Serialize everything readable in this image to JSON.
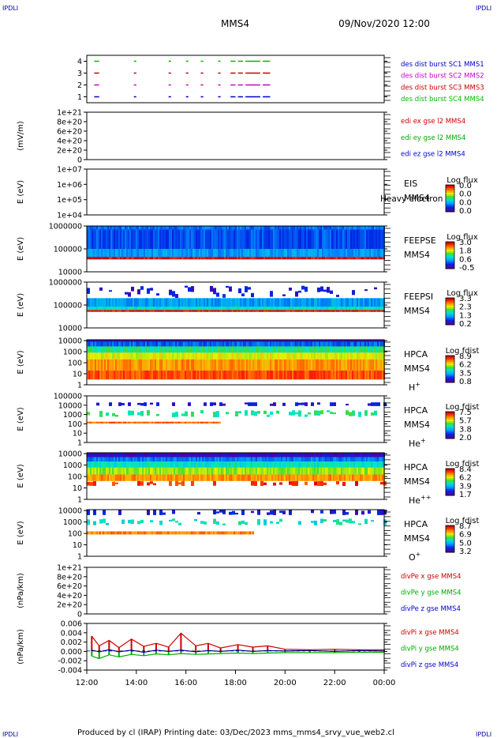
{
  "header": {
    "corner_tl": "IPDLI",
    "corner_tr": "IPDLI",
    "corner_bl": "IPDLI",
    "corner_br": "IPDLI",
    "spacecraft": "MMS4",
    "datetime": "09/Nov/2020 12:00"
  },
  "footer": {
    "text": "Produced by cl (IRAP)   Printing date: 03/Dec/2023   mms_mms4_srvy_vue_web2.cl"
  },
  "time_axis": {
    "ticks": [
      "12:00",
      "14:00",
      "16:00",
      "18:00",
      "20:00",
      "22:00",
      "00:00"
    ],
    "range_hours": [
      0,
      12
    ]
  },
  "chart_data": [
    {
      "id": "burst",
      "type": "scatter",
      "yticks": [
        "1",
        "2",
        "3",
        "4"
      ],
      "ylim": [
        0.5,
        4.5
      ],
      "legend": [
        {
          "label": "des dist burst SC1 MMS1",
          "color": "#0000cc"
        },
        {
          "label": "des dist burst SC2 MMS2",
          "color": "#cc00cc"
        },
        {
          "label": "des dist burst SC3 MMS3",
          "color": "#cc0000"
        },
        {
          "label": "des dist burst SC4 MMS4",
          "color": "#00bb00"
        }
      ],
      "series": [
        {
          "level": 4,
          "color": "#00bb00",
          "intervals": [
            [
              0.3,
              0.5
            ],
            [
              1.9,
              2.0
            ],
            [
              3.3,
              3.4
            ],
            [
              4.0,
              4.1
            ],
            [
              4.6,
              4.7
            ],
            [
              5.3,
              5.4
            ],
            [
              5.8,
              6.0
            ],
            [
              6.1,
              6.3
            ],
            [
              6.4,
              7.0
            ],
            [
              7.1,
              7.4
            ]
          ]
        },
        {
          "level": 3,
          "color": "#cc0000",
          "intervals": [
            [
              0.3,
              0.5
            ],
            [
              1.9,
              2.0
            ],
            [
              3.3,
              3.4
            ],
            [
              4.0,
              4.1
            ],
            [
              4.6,
              4.7
            ],
            [
              5.3,
              5.4
            ],
            [
              5.8,
              6.0
            ],
            [
              6.1,
              6.3
            ],
            [
              6.4,
              7.0
            ],
            [
              7.1,
              7.4
            ]
          ]
        },
        {
          "level": 2,
          "color": "#cc00cc",
          "intervals": [
            [
              0.3,
              0.5
            ],
            [
              1.9,
              2.0
            ],
            [
              3.3,
              3.4
            ],
            [
              4.0,
              4.1
            ],
            [
              4.6,
              4.7
            ],
            [
              5.3,
              5.4
            ],
            [
              5.8,
              6.0
            ],
            [
              6.1,
              6.3
            ],
            [
              6.4,
              7.0
            ],
            [
              7.1,
              7.4
            ]
          ]
        },
        {
          "level": 1,
          "color": "#0000cc",
          "intervals": [
            [
              0.3,
              0.5
            ],
            [
              1.9,
              2.0
            ],
            [
              3.3,
              3.4
            ],
            [
              4.0,
              4.1
            ],
            [
              4.6,
              4.7
            ],
            [
              5.3,
              5.4
            ],
            [
              5.8,
              6.0
            ],
            [
              6.1,
              6.3
            ],
            [
              6.4,
              7.0
            ],
            [
              7.1,
              7.4
            ]
          ]
        }
      ]
    },
    {
      "id": "edi",
      "type": "line",
      "ylabel": "(mV/m)",
      "yticks": [
        "0",
        "2e+20",
        "4e+20",
        "6e+20",
        "8e+20",
        "1e+21"
      ],
      "ylim": [
        0,
        1e+21
      ],
      "legend": [
        {
          "label": "edi ex gse l2 MMS4",
          "color": "#cc0000"
        },
        {
          "label": "edi ey gse l2 MMS4",
          "color": "#00aa00"
        },
        {
          "label": "edi ez gse l2 MMS4",
          "color": "#0000cc"
        }
      ],
      "series": []
    },
    {
      "id": "eis",
      "type": "heatmap",
      "ylabel": "E (eV)",
      "yticks": [
        "1e+04",
        "1e+05",
        "1e+06",
        "1e+07"
      ],
      "ylim": [
        10000.0,
        10000000.0
      ],
      "label_lines": [
        "EIS",
        "MMS4"
      ],
      "overlay_text": "Heavy electron to",
      "colorbar": {
        "title": "Log flux",
        "ticks": [
          "0.0",
          "0.0",
          "0.0",
          "0.0"
        ]
      },
      "data": "empty"
    },
    {
      "id": "feepse",
      "type": "heatmap",
      "ylabel": "E (eV)",
      "yticks": [
        "10000",
        "100000",
        "1000000"
      ],
      "ylim": [
        10000,
        1000000
      ],
      "label_lines": [
        "FEEPSE",
        "MMS4"
      ],
      "colorbar": {
        "title": "Log flux",
        "ticks": [
          "3.0",
          "1.8",
          "0.6",
          "-0.5"
        ]
      },
      "bands": [
        {
          "from": 700000,
          "to": 1000000,
          "level": 0.24
        },
        {
          "from": 100000,
          "to": 700000,
          "level": 0.2
        },
        {
          "from": 45000,
          "to": 100000,
          "level": 0.3
        },
        {
          "from": 35000,
          "to": 45000,
          "level": 0.98
        }
      ]
    },
    {
      "id": "feepsi",
      "type": "heatmap",
      "ylabel": "E (eV)",
      "yticks": [
        "10000",
        "100000",
        "1000000"
      ],
      "ylim": [
        10000,
        1000000
      ],
      "label_lines": [
        "FEEPSI",
        "MMS4"
      ],
      "colorbar": {
        "title": "Log flux",
        "ticks": [
          "3.3",
          "2.3",
          "1.3",
          "0.2"
        ]
      },
      "bands": [
        {
          "from": 200000,
          "to": 700000,
          "level": 0.1,
          "sparse": true
        },
        {
          "from": 85000,
          "to": 200000,
          "level": 0.3
        },
        {
          "from": 60000,
          "to": 85000,
          "level": 0.45
        },
        {
          "from": 50000,
          "to": 60000,
          "level": 0.98
        }
      ]
    },
    {
      "id": "hpca_h",
      "type": "heatmap",
      "ylabel": "E (eV)",
      "yticks": [
        "1",
        "10",
        "100",
        "1000",
        "10000"
      ],
      "ylim": [
        1,
        12000
      ],
      "label_lines": [
        "HPCA",
        "MMS4",
        "H+"
      ],
      "colorbar": {
        "title": "Log fdist",
        "ticks": [
          "8.9",
          "6.2",
          "3.5",
          "0.8"
        ]
      },
      "bands": [
        {
          "from": 8000,
          "to": 12000,
          "level": 0.05
        },
        {
          "from": 3000,
          "to": 8000,
          "level": 0.22
        },
        {
          "from": 800,
          "to": 3000,
          "level": 0.5
        },
        {
          "from": 200,
          "to": 800,
          "level": 0.68
        },
        {
          "from": 20,
          "to": 200,
          "level": 0.8
        },
        {
          "from": 3,
          "to": 20,
          "level": 0.88
        }
      ]
    },
    {
      "id": "hpca_he1",
      "type": "heatmap",
      "ylabel": "E (eV)",
      "yticks": [
        "1",
        "10",
        "100",
        "1000",
        "10000",
        "100000"
      ],
      "ylim": [
        1,
        100000
      ],
      "label_lines": [
        "HPCA",
        "MMS4",
        "He+"
      ],
      "colorbar": {
        "title": "Log fdist",
        "ticks": [
          "7.5",
          "5.7",
          "3.8",
          "2.0"
        ]
      },
      "bands": [
        {
          "from": 8000,
          "to": 20000,
          "level": 0.1,
          "sparse": true
        },
        {
          "from": 500,
          "to": 3000,
          "level": 0.5,
          "sparse": true
        },
        {
          "from": 110,
          "to": 170,
          "level": 0.85,
          "until_hours": 5.4
        }
      ]
    },
    {
      "id": "hpca_he2",
      "type": "heatmap",
      "ylabel": "E (eV)",
      "yticks": [
        "1",
        "10",
        "100",
        "1000",
        "10000"
      ],
      "ylim": [
        1,
        12000
      ],
      "label_lines": [
        "HPCA",
        "MMS4",
        "He++"
      ],
      "colorbar": {
        "title": "Log fdist",
        "ticks": [
          "8.4",
          "6.2",
          "3.9",
          "1.7"
        ]
      },
      "bands": [
        {
          "from": 5000,
          "to": 12000,
          "level": 0.05
        },
        {
          "from": 2000,
          "to": 5000,
          "level": 0.25
        },
        {
          "from": 600,
          "to": 2000,
          "level": 0.45
        },
        {
          "from": 150,
          "to": 600,
          "level": 0.62
        },
        {
          "from": 40,
          "to": 150,
          "level": 0.8
        },
        {
          "from": 15,
          "to": 40,
          "level": 0.92,
          "sparse": true
        }
      ]
    },
    {
      "id": "hpca_o",
      "type": "heatmap",
      "ylabel": "E (eV)",
      "yticks": [
        "1",
        "10",
        "100",
        "1000",
        "10000"
      ],
      "ylim": [
        1,
        12000
      ],
      "label_lines": [
        "HPCA",
        "MMS4",
        "O+"
      ],
      "colorbar": {
        "title": "Log fdist",
        "ticks": [
          "8.7",
          "6.9",
          "5.0",
          "3.2"
        ]
      },
      "bands": [
        {
          "from": 4000,
          "to": 12000,
          "level": 0.1,
          "sparse": true
        },
        {
          "from": 500,
          "to": 2000,
          "level": 0.45,
          "sparse": true
        },
        {
          "from": 80,
          "to": 150,
          "level": 0.82,
          "until_hours": 6.7
        }
      ]
    },
    {
      "id": "dive",
      "type": "line",
      "ylabel": "(nPa/km)",
      "yticks": [
        "0",
        "2e+20",
        "4e+20",
        "6e+20",
        "8e+20",
        "1e+21"
      ],
      "ylim": [
        0,
        1e+21
      ],
      "legend": [
        {
          "label": "divPe x gse MMS4",
          "color": "#cc0000"
        },
        {
          "label": "divPe y gse MMS4",
          "color": "#00aa00"
        },
        {
          "label": "divPe z gse MMS4",
          "color": "#0000cc"
        }
      ],
      "series": []
    },
    {
      "id": "divi",
      "type": "line",
      "ylabel": "(nPa/km)",
      "yticks": [
        "-0.004",
        "-0.002",
        "0.000",
        "0.002",
        "0.004",
        "0.006"
      ],
      "ylim": [
        -0.0045,
        0.0065
      ],
      "legend": [
        {
          "label": "divPi x gse MMS4",
          "color": "#cc0000"
        },
        {
          "label": "divPi y gse MMS4",
          "color": "#00aa00"
        },
        {
          "label": "divPi z gse MMS4",
          "color": "#0000cc"
        }
      ],
      "series": [
        {
          "name": "divPi x gse MMS4",
          "color": "#cc0000",
          "x": [
            0.2,
            0.5,
            0.9,
            1.3,
            1.8,
            2.3,
            2.8,
            3.3,
            3.8,
            4.4,
            4.9,
            5.4,
            6.1,
            6.7,
            7.3,
            8,
            9,
            10,
            11,
            12
          ],
          "y": [
            0.0035,
            0.0012,
            0.0025,
            0.0008,
            0.0028,
            0.0011,
            0.0018,
            0.0009,
            0.0042,
            0.0012,
            0.0018,
            0.0007,
            0.0015,
            0.0009,
            0.0012,
            0.0004,
            0.0003,
            0.0004,
            0.0003,
            0.0003
          ]
        },
        {
          "name": "divPi y gse MMS4",
          "color": "#00aa00",
          "x": [
            0.2,
            0.5,
            0.9,
            1.3,
            1.8,
            2.3,
            2.8,
            3.3,
            3.8,
            4.4,
            4.9,
            5.4,
            6.1,
            6.7,
            7.3,
            8,
            9,
            10,
            11,
            12
          ],
          "y": [
            -0.0012,
            -0.0018,
            -0.0009,
            -0.0014,
            -0.0008,
            -0.0011,
            -0.0007,
            -0.0009,
            -0.0006,
            -0.0008,
            -0.0007,
            -0.0006,
            -0.0005,
            -0.0006,
            -0.0005,
            -0.0004,
            -0.0004,
            -0.0004,
            -0.0003,
            -0.0003
          ]
        },
        {
          "name": "divPi z gse MMS4",
          "color": "#0000cc",
          "x": [
            0.2,
            0.5,
            0.9,
            1.3,
            1.8,
            2.3,
            2.8,
            3.3,
            3.8,
            4.4,
            4.9,
            5.4,
            6.1,
            6.7,
            7.3,
            8,
            9,
            10,
            11,
            12
          ],
          "y": [
            0.0002,
            -0.0002,
            0.0003,
            -0.0002,
            0.0002,
            -0.0003,
            0.0002,
            -0.0001,
            0.0002,
            -0.0002,
            0.0001,
            -0.0001,
            0.0002,
            -0.0001,
            0.0001,
            0.0,
            0.0001,
            -0.0001,
            0.0001,
            0.0
          ]
        }
      ]
    }
  ]
}
